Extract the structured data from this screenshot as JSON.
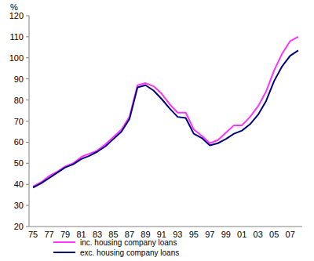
{
  "chart_data": {
    "type": "line",
    "ylabel": "%",
    "categories": [
      "75",
      null,
      "77",
      null,
      "79",
      null,
      "81",
      null,
      "83",
      null,
      "85",
      null,
      "87",
      null,
      "89",
      null,
      "91",
      null,
      "93",
      null,
      "95",
      null,
      "97",
      null,
      "99",
      null,
      "01",
      null,
      "03",
      null,
      "05",
      null,
      "07",
      null
    ],
    "series": [
      {
        "name": "inc. housing company loans",
        "color": "#ff33ff",
        "values": [
          39,
          41,
          44,
          46,
          48.5,
          50,
          53,
          54.5,
          56,
          59,
          62.5,
          66,
          72,
          87,
          88,
          86.5,
          83,
          78,
          74,
          74,
          66,
          63,
          59.5,
          61,
          64.5,
          68,
          68,
          72,
          77,
          84,
          94,
          102,
          108,
          110
        ]
      },
      {
        "name": "exc. housing company loans",
        "color": "#000080",
        "values": [
          38.5,
          40.5,
          43,
          45.5,
          48,
          49.5,
          52,
          53.5,
          55.5,
          58,
          61.5,
          65,
          71,
          86,
          87,
          84.5,
          80.5,
          76,
          72,
          71.5,
          64,
          62,
          58.5,
          59.5,
          61.5,
          64,
          65.5,
          68.5,
          73,
          79.5,
          89,
          96,
          101,
          103.5
        ]
      }
    ],
    "ylim": [
      20,
      120
    ],
    "yticks": [
      20,
      30,
      40,
      50,
      60,
      70,
      80,
      90,
      100,
      110,
      120
    ],
    "grid": false,
    "legend": "bottom"
  }
}
